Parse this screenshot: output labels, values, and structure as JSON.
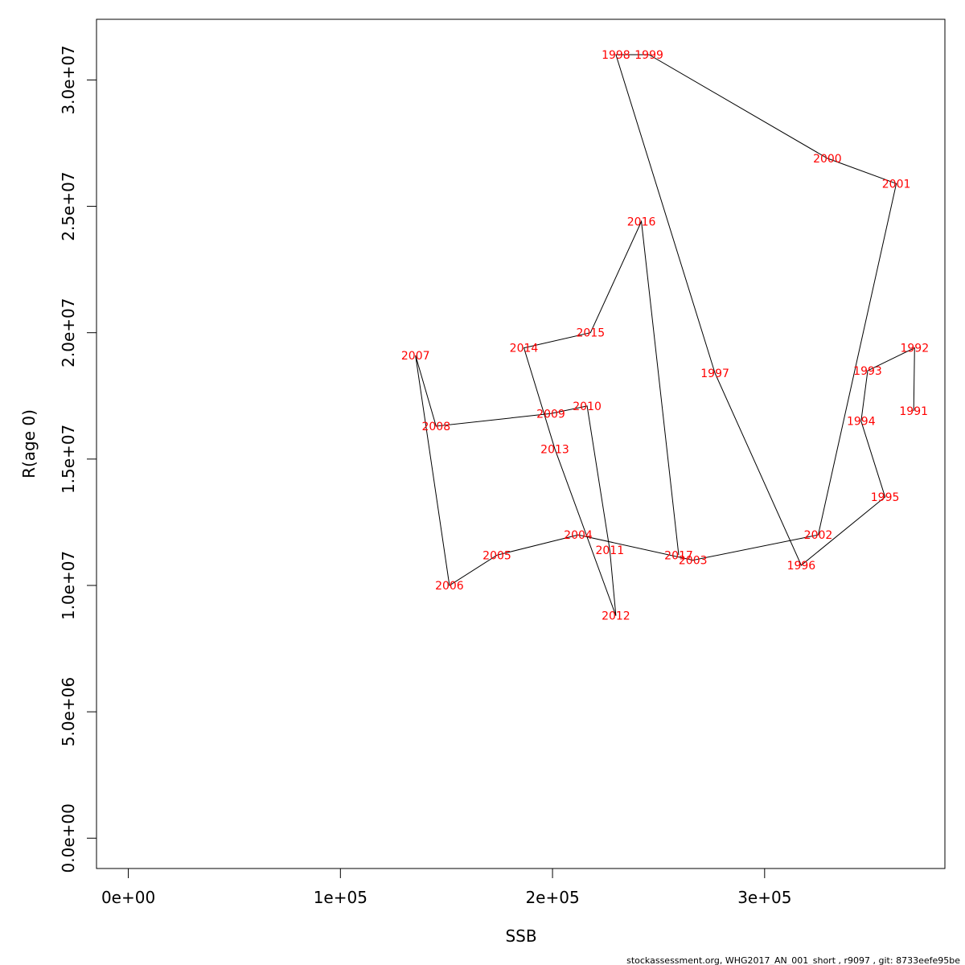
{
  "chart_data": {
    "type": "line",
    "xlabel": "SSB",
    "ylabel": "R(age 0)",
    "xlim": [
      -15000,
      385000
    ],
    "ylim": [
      -1200000,
      32400000
    ],
    "x_ticks": [
      0,
      100000,
      200000,
      300000
    ],
    "x_tick_labels": [
      "0e+00",
      "1e+05",
      "2e+05",
      "3e+05"
    ],
    "y_ticks": [
      0,
      5000000,
      10000000,
      15000000,
      20000000,
      25000000,
      30000000
    ],
    "y_tick_labels": [
      "0.0e+00",
      "5.0e+06",
      "1.0e+07",
      "1.5e+07",
      "2.0e+07",
      "2.5e+07",
      "3.0e+07"
    ],
    "grid": false,
    "line_color": "#000000",
    "label_color": "#ff0000",
    "points": [
      {
        "year": "1991",
        "x": 370300,
        "y": 16900000
      },
      {
        "year": "1992",
        "x": 370700,
        "y": 19400000
      },
      {
        "year": "1993",
        "x": 348600,
        "y": 18500000
      },
      {
        "year": "1994",
        "x": 345500,
        "y": 16500000
      },
      {
        "year": "1995",
        "x": 356800,
        "y": 13500000
      },
      {
        "year": "1996",
        "x": 317300,
        "y": 10800000
      },
      {
        "year": "1997",
        "x": 276600,
        "y": 18400000
      },
      {
        "year": "1998",
        "x": 229900,
        "y": 31000000
      },
      {
        "year": "1999",
        "x": 245500,
        "y": 31000000
      },
      {
        "year": "2000",
        "x": 329600,
        "y": 26900000
      },
      {
        "year": "2001",
        "x": 362100,
        "y": 25900000
      },
      {
        "year": "2002",
        "x": 325300,
        "y": 12000000
      },
      {
        "year": "2003",
        "x": 266200,
        "y": 11000000
      },
      {
        "year": "2004",
        "x": 212100,
        "y": 12000000
      },
      {
        "year": "2005",
        "x": 173800,
        "y": 11200000
      },
      {
        "year": "2006",
        "x": 151400,
        "y": 10000000
      },
      {
        "year": "2007",
        "x": 135400,
        "y": 19100000
      },
      {
        "year": "2008",
        "x": 145100,
        "y": 16300000
      },
      {
        "year": "2009",
        "x": 199200,
        "y": 16800000
      },
      {
        "year": "2010",
        "x": 216300,
        "y": 17100000
      },
      {
        "year": "2011",
        "x": 227000,
        "y": 11400000
      },
      {
        "year": "2012",
        "x": 229900,
        "y": 8800000
      },
      {
        "year": "2013",
        "x": 201100,
        "y": 15400000
      },
      {
        "year": "2014",
        "x": 186500,
        "y": 19400000
      },
      {
        "year": "2015",
        "x": 217900,
        "y": 20000000
      },
      {
        "year": "2016",
        "x": 241900,
        "y": 24400000
      },
      {
        "year": "2017",
        "x": 259500,
        "y": 11200000
      }
    ]
  },
  "footer": {
    "text": "stockassessment.org, WHG2017_AN_001_short , r9097 , git: 8733eefe95be"
  }
}
